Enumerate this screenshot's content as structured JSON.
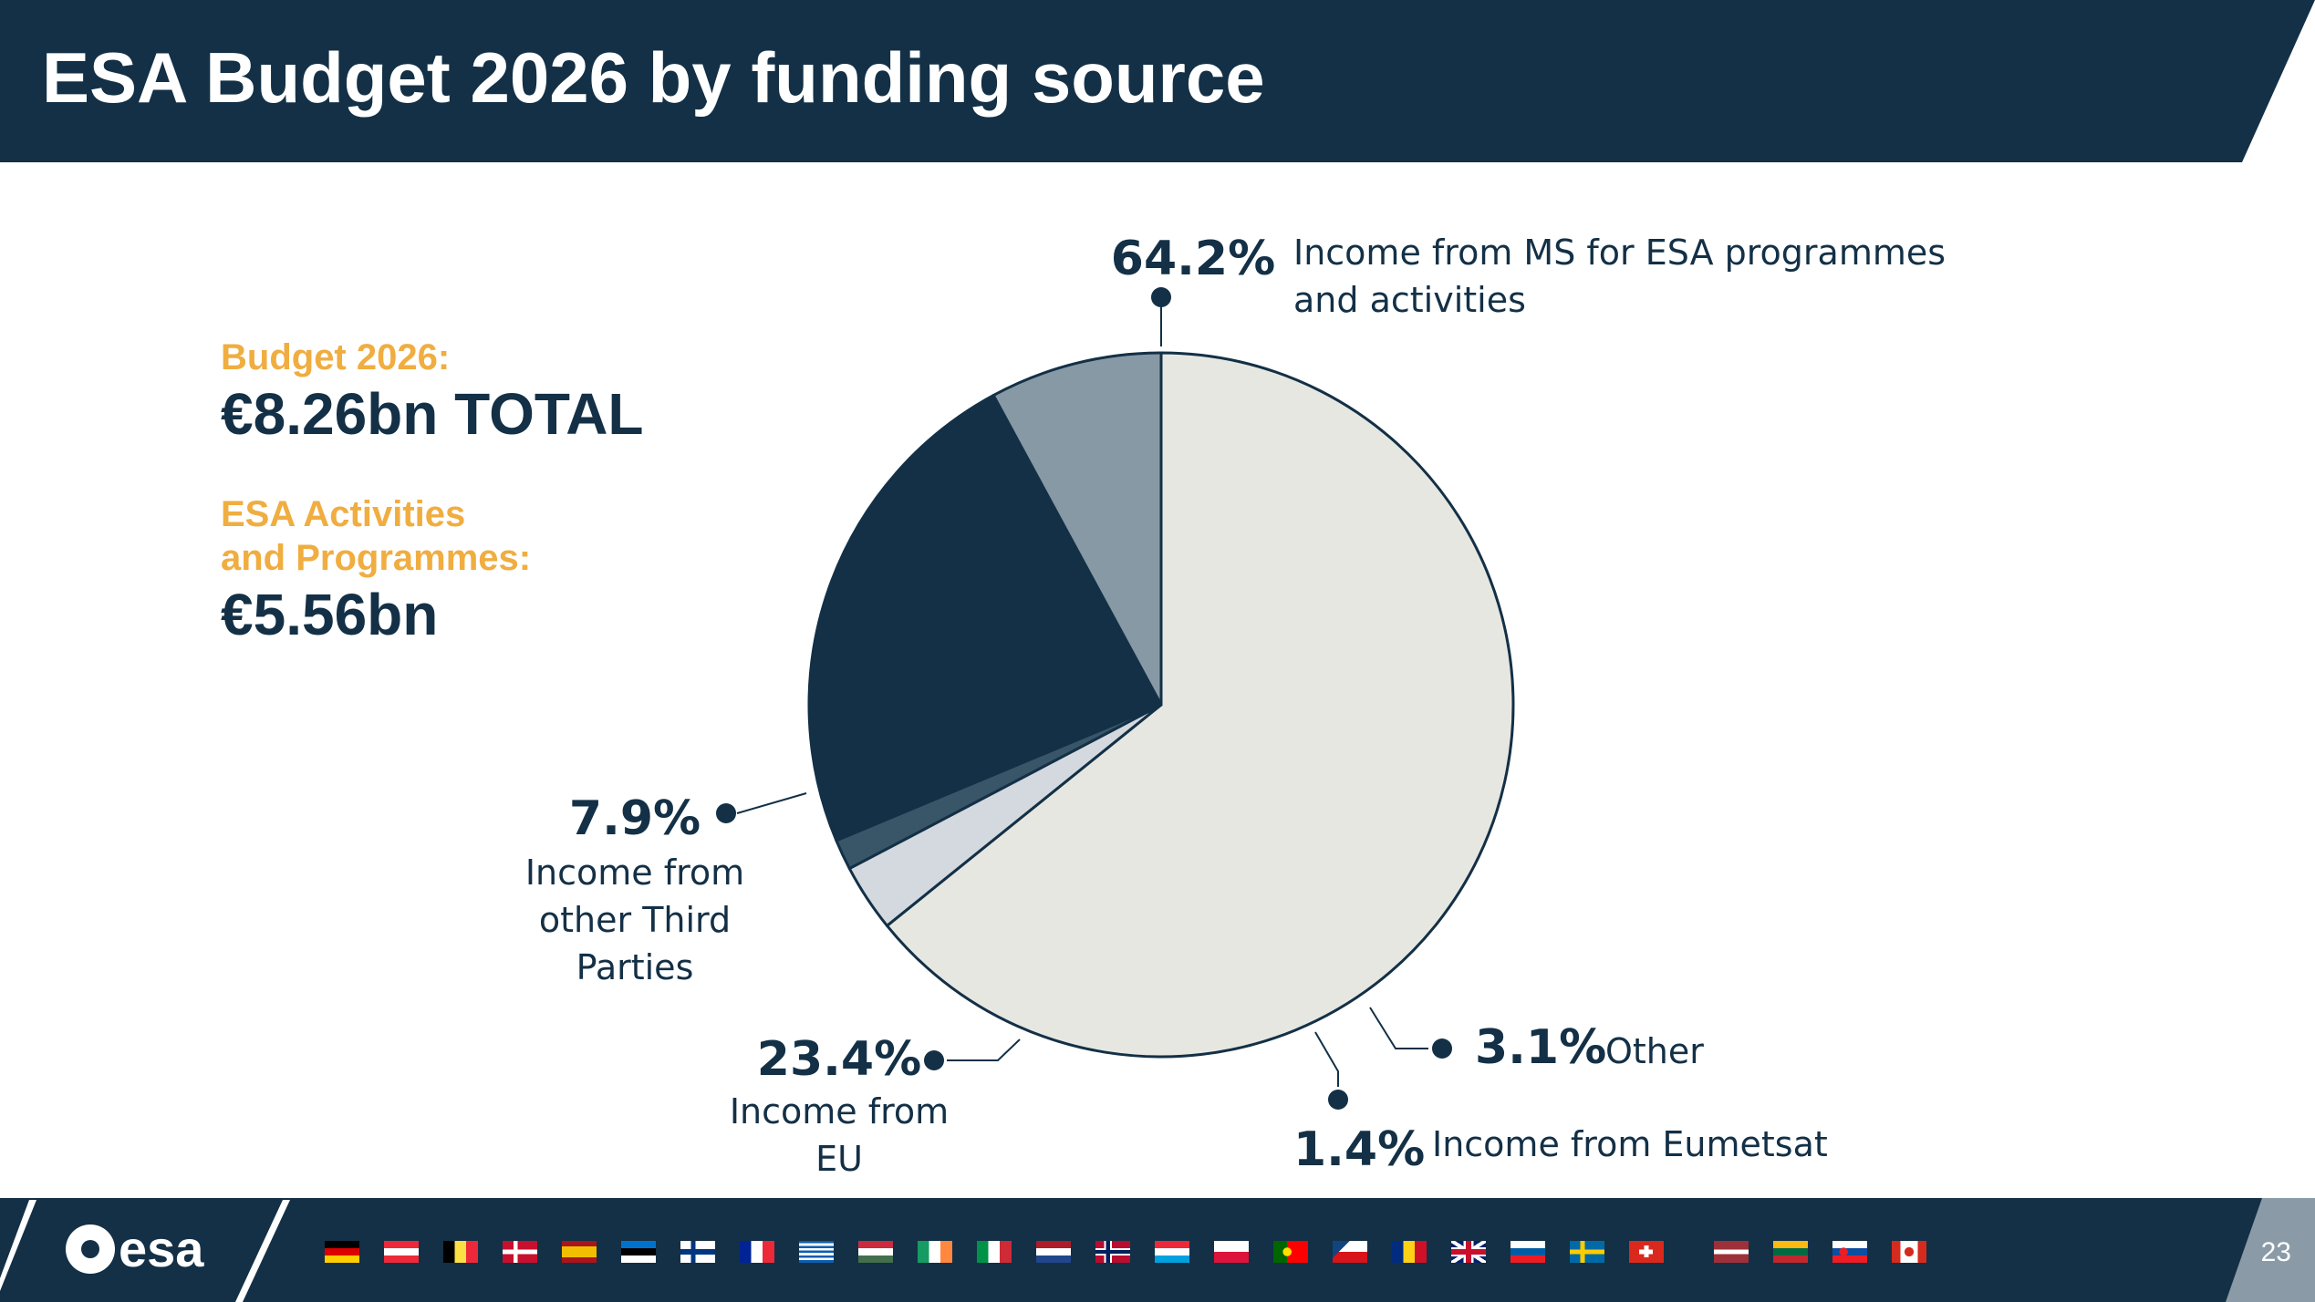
{
  "slide": {
    "title": "ESA Budget 2026 by funding source",
    "page_number": "23"
  },
  "summary": {
    "budget_label": "Budget 2026:",
    "budget_value": "€8.26bn TOTAL",
    "activities_label_line1": "ESA Activities",
    "activities_label_line2": "and Programmes:",
    "activities_value": "€5.56bn"
  },
  "colors": {
    "navy": "#133046",
    "orange": "#f0ad40",
    "slice_ms": "#e7e7e2",
    "slice_other": "#d3d9de",
    "slice_eumetsat": "#385668",
    "slice_eu": "#133046",
    "slice_third": "#8799a5"
  },
  "chart_data": {
    "type": "pie",
    "title": "ESA Budget 2026 by funding source",
    "series": [
      {
        "name": "Income from MS for ESA programmes and activities",
        "value": 64.2,
        "label": "64.2%",
        "desc_lines": [
          "Income from MS for ESA programmes",
          "and activities"
        ]
      },
      {
        "name": "Other",
        "value": 3.1,
        "label": "3.1%",
        "desc_lines": [
          "Other"
        ]
      },
      {
        "name": "Income from Eumetsat",
        "value": 1.4,
        "label": "1.4%",
        "desc_lines": [
          "Income from Eumetsat"
        ]
      },
      {
        "name": "Income from EU",
        "value": 23.4,
        "label": "23.4%",
        "desc_lines": [
          "Income from",
          "EU"
        ]
      },
      {
        "name": "Income from other Third Parties",
        "value": 7.9,
        "label": "7.9%",
        "desc_lines": [
          "Income from",
          "other Third",
          "Parties"
        ]
      }
    ]
  },
  "footer": {
    "logo_text": "esa",
    "flags": [
      "germany",
      "austria",
      "belgium",
      "denmark",
      "spain",
      "estonia",
      "finland",
      "france",
      "greece",
      "hungary",
      "ireland",
      "italy",
      "netherlands",
      "norway",
      "luxembourg",
      "poland",
      "portugal",
      "czechia",
      "romania",
      "united-kingdom",
      "slovenia",
      "sweden",
      "switzerland",
      "latvia",
      "lithuania",
      "slovakia",
      "canada"
    ]
  }
}
